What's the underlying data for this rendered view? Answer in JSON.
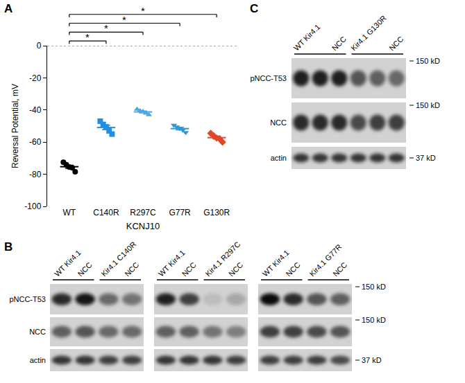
{
  "chart_data": {
    "type": "scatter",
    "panel": "A",
    "xlabel": "KCNJ10",
    "ylabel": "Reversal Potential, mV",
    "categories": [
      "WT",
      "C140R",
      "R297C",
      "G77R",
      "G130R"
    ],
    "ylim": [
      -100,
      0
    ],
    "yticks": [
      -100,
      -80,
      -60,
      -40,
      -20,
      0
    ],
    "grid": false,
    "reference_line": 0,
    "series": [
      {
        "category": "WT",
        "color": "#000000",
        "marker": "circle",
        "values": [
          -72.5,
          -74,
          -75.5,
          -76,
          -78.5
        ],
        "mean": -75.3,
        "sem": 1.0
      },
      {
        "category": "C140R",
        "color": "#1f8fe6",
        "marker": "square",
        "values": [
          -47,
          -49,
          -50.5,
          -53,
          -55
        ],
        "mean": -50.9,
        "sem": 1.4
      },
      {
        "category": "R297C",
        "color": "#47a9e6",
        "marker": "triangle-up",
        "values": [
          -39.5,
          -40.5,
          -41,
          -42,
          -43
        ],
        "mean": -41.2,
        "sem": 0.6
      },
      {
        "category": "G77R",
        "color": "#2c9ad8",
        "marker": "triangle-down",
        "values": [
          -49.5,
          -50.5,
          -51.5,
          -52.5,
          -54
        ],
        "mean": -51.6,
        "sem": 0.8
      },
      {
        "category": "G130R",
        "color": "#e2462a",
        "marker": "diamond",
        "values": [
          -54.5,
          -56,
          -57.5,
          -58,
          -60
        ],
        "mean": -57.2,
        "sem": 0.9
      }
    ],
    "significance": [
      {
        "from": "WT",
        "to": "C140R",
        "label": "*"
      },
      {
        "from": "WT",
        "to": "R297C",
        "label": "*"
      },
      {
        "from": "WT",
        "to": "G77R",
        "label": "*"
      },
      {
        "from": "WT",
        "to": "G130R",
        "label": "*"
      }
    ]
  },
  "blots": {
    "B": {
      "label": "B",
      "row_labels": [
        "pNCC-T53",
        "NCC",
        "actin"
      ],
      "marker_labels": [
        "150 kD",
        "150 kD",
        "37 kD"
      ],
      "blots": [
        {
          "groups": [
            {
              "top": "WT Kir4.1",
              "bottom": "NCC",
              "lanes": 2
            },
            {
              "top": "Kir4.1 C140R",
              "bottom": "NCC",
              "lanes": 2
            }
          ],
          "bands": [
            [
              0.8,
              0.9,
              0.5,
              0.45
            ],
            [
              0.55,
              0.6,
              0.5,
              0.5
            ],
            [
              0.75,
              0.75,
              0.7,
              0.7
            ]
          ]
        },
        {
          "groups": [
            {
              "top": "WT Kir4.1",
              "bottom": "NCC",
              "lanes": 2
            },
            {
              "top": "Kir4.1 R297C",
              "bottom": "NCC",
              "lanes": 2
            }
          ],
          "bands": [
            [
              0.85,
              0.7,
              0.1,
              0.2
            ],
            [
              0.55,
              0.55,
              0.45,
              0.4
            ],
            [
              0.75,
              0.75,
              0.75,
              0.7
            ]
          ]
        },
        {
          "groups": [
            {
              "top": "WT Kir4.1",
              "bottom": "NCC",
              "lanes": 2
            },
            {
              "top": "Kir4.1 G77R",
              "bottom": "NCC",
              "lanes": 2
            }
          ],
          "bands": [
            [
              0.95,
              0.8,
              0.6,
              0.55
            ],
            [
              0.7,
              0.7,
              0.65,
              0.6
            ],
            [
              0.7,
              0.7,
              0.7,
              0.65
            ]
          ]
        }
      ]
    },
    "C": {
      "label": "C",
      "row_labels": [
        "pNCC-T53",
        "NCC",
        "actin"
      ],
      "marker_labels": [
        "150 kD",
        "150 kD",
        "37 kD"
      ],
      "blots": [
        {
          "groups": [
            {
              "top": "WT Kir4.1",
              "bottom": "NCC",
              "lanes": 3
            },
            {
              "top": "Kir4.1 G130R",
              "bottom": "NCC",
              "lanes": 3
            }
          ],
          "bands": [
            [
              0.85,
              0.85,
              0.85,
              0.6,
              0.55,
              0.5
            ],
            [
              0.8,
              0.8,
              0.8,
              0.65,
              0.7,
              0.7
            ],
            [
              0.75,
              0.75,
              0.75,
              0.75,
              0.75,
              0.75
            ]
          ]
        }
      ]
    }
  }
}
